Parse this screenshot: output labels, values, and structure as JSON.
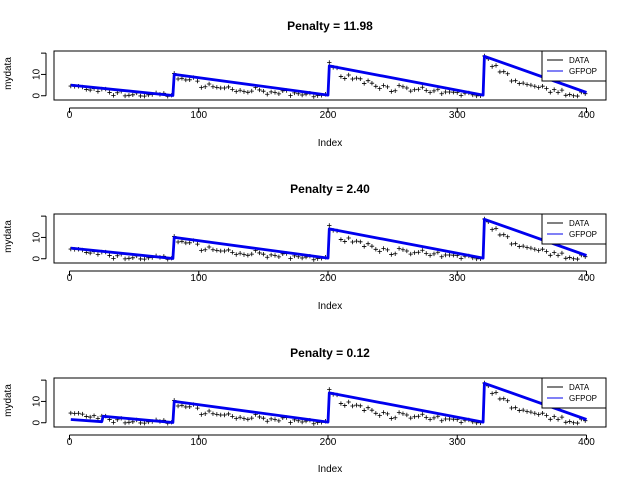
{
  "chart_data": [
    {
      "type": "line",
      "title": "Penalty =  11.98",
      "xlabel": "Index",
      "ylabel": "mydata",
      "xlim": [
        0,
        400
      ],
      "ylim": [
        -2,
        21
      ],
      "xticks": [
        "0",
        "100",
        "200",
        "300",
        "400"
      ],
      "yticks": [
        "0",
        "10"
      ],
      "legend": {
        "position": "top-right",
        "entries": [
          "DATA",
          "GFPOP"
        ]
      },
      "series": [
        {
          "name": "DATA",
          "style": "points",
          "generator": "decay",
          "segments": [
            [
              1,
              80,
              5
            ],
            [
              81,
              200,
              10
            ],
            [
              201,
              320,
              14
            ],
            [
              321,
              400,
              19
            ]
          ]
        },
        {
          "name": "GFPOP",
          "x": [
            1,
            80,
            81,
            200,
            201,
            320,
            321,
            400
          ],
          "y": [
            5,
            0.1,
            10,
            0.3,
            14,
            0.3,
            18.5,
            1.5
          ]
        }
      ]
    },
    {
      "type": "line",
      "title": "Penalty =  2.40",
      "xlabel": "Index",
      "ylabel": "mydata",
      "xlim": [
        0,
        400
      ],
      "ylim": [
        -2,
        21
      ],
      "xticks": [
        "0",
        "100",
        "200",
        "300",
        "400"
      ],
      "yticks": [
        "0",
        "10"
      ],
      "legend": {
        "position": "top-right",
        "entries": [
          "DATA",
          "GFPOP"
        ]
      },
      "series": [
        {
          "name": "DATA",
          "style": "points",
          "generator": "decay",
          "segments": [
            [
              1,
              80,
              5
            ],
            [
              81,
              200,
              10
            ],
            [
              201,
              320,
              14
            ],
            [
              321,
              400,
              19
            ]
          ]
        },
        {
          "name": "GFPOP",
          "x": [
            1,
            80,
            81,
            200,
            201,
            320,
            321,
            400
          ],
          "y": [
            5,
            0.1,
            10,
            0.3,
            14,
            0.3,
            18.5,
            1.5
          ]
        }
      ]
    },
    {
      "type": "line",
      "title": "Penalty =  0.12",
      "xlabel": "Index",
      "ylabel": "mydata",
      "xlim": [
        0,
        400
      ],
      "ylim": [
        -2,
        21
      ],
      "xticks": [
        "0",
        "100",
        "200",
        "300",
        "400"
      ],
      "yticks": [
        "0",
        "10"
      ],
      "legend": {
        "position": "top-right",
        "entries": [
          "DATA",
          "GFPOP"
        ]
      },
      "series": [
        {
          "name": "DATA",
          "style": "points",
          "generator": "decay",
          "segments": [
            [
              1,
              80,
              5
            ],
            [
              81,
              200,
              10
            ],
            [
              201,
              320,
              14
            ],
            [
              321,
              400,
              19
            ]
          ]
        },
        {
          "name": "GFPOP",
          "x": [
            1,
            25,
            26,
            80,
            81,
            200,
            201,
            320,
            321,
            400
          ],
          "y": [
            1.5,
            0.5,
            3,
            0.1,
            10,
            0.3,
            14,
            0.3,
            18.5,
            1.5
          ]
        }
      ]
    }
  ],
  "colors": {
    "data": "#000000",
    "gfpop": "#0000ee",
    "frame": "#000000"
  }
}
